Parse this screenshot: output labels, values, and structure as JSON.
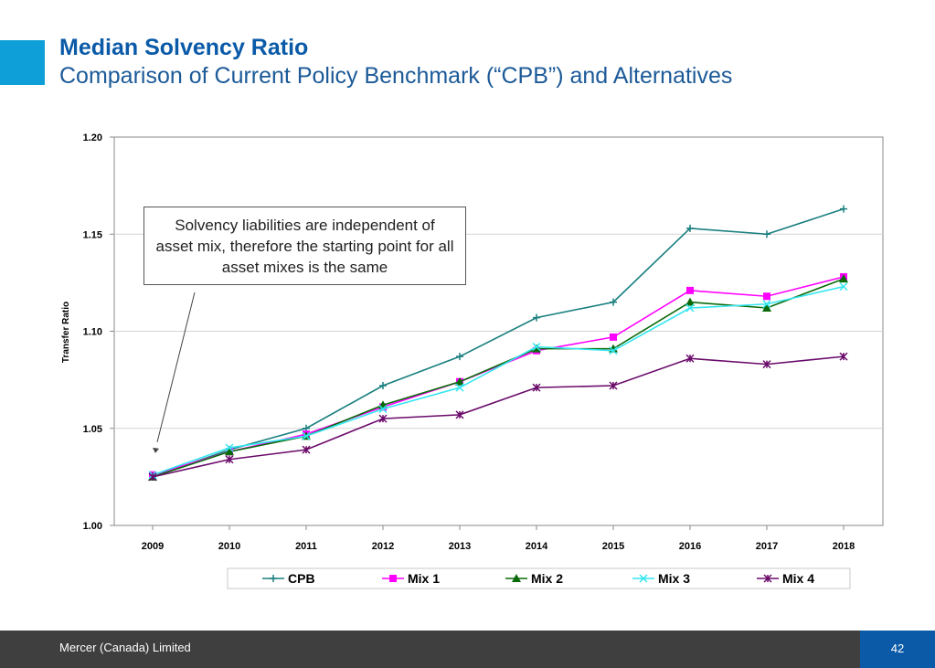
{
  "header": {
    "title": "Median Solvency Ratio",
    "subtitle": "Comparison of Current Policy Benchmark (“CPB”) and Alternatives",
    "accent_color": "#0e9fd8"
  },
  "chart_data": {
    "type": "line",
    "categories": [
      "2009",
      "2010",
      "2011",
      "2012",
      "2013",
      "2014",
      "2015",
      "2016",
      "2017",
      "2018"
    ],
    "ylabel": "Transfer Ratio",
    "xlabel": "",
    "ylim": [
      1.0,
      1.2
    ],
    "yticks": [
      "1.00",
      "1.05",
      "1.10",
      "1.15",
      "1.20"
    ],
    "grid": true,
    "legend_position": "bottom",
    "series": [
      {
        "name": "CPB",
        "color": "#1a7f7f",
        "marker": "plus",
        "values": [
          1.025,
          1.039,
          1.05,
          1.072,
          1.087,
          1.107,
          1.115,
          1.153,
          1.15,
          1.163
        ]
      },
      {
        "name": "Mix 1",
        "color": "#ff00ff",
        "marker": "square",
        "values": [
          1.026,
          1.038,
          1.047,
          1.061,
          1.074,
          1.09,
          1.097,
          1.121,
          1.118,
          1.128
        ]
      },
      {
        "name": "Mix 2",
        "color": "#0a6a0a",
        "marker": "triangle",
        "values": [
          1.025,
          1.038,
          1.046,
          1.062,
          1.074,
          1.091,
          1.091,
          1.115,
          1.112,
          1.127
        ]
      },
      {
        "name": "Mix 3",
        "color": "#33e6f0",
        "marker": "x",
        "values": [
          1.026,
          1.04,
          1.046,
          1.06,
          1.071,
          1.092,
          1.09,
          1.112,
          1.114,
          1.123
        ]
      },
      {
        "name": "Mix 4",
        "color": "#6a0a6a",
        "marker": "star",
        "values": [
          1.025,
          1.034,
          1.039,
          1.055,
          1.057,
          1.071,
          1.072,
          1.086,
          1.083,
          1.087
        ]
      }
    ],
    "annotation": {
      "text": "Solvency liabilities are independent of asset mix, therefore the starting point for all asset mixes is the same",
      "points_to": "2009"
    }
  },
  "footer": {
    "company": "Mercer (Canada) Limited",
    "page_number": "42",
    "page_box_color": "#0a5aa8"
  }
}
